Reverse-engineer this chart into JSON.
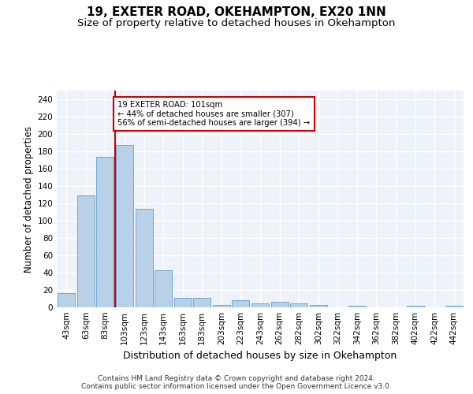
{
  "title1": "19, EXETER ROAD, OKEHAMPTON, EX20 1NN",
  "title2": "Size of property relative to detached houses in Okehampton",
  "xlabel": "Distribution of detached houses by size in Okehampton",
  "ylabel": "Number of detached properties",
  "footer1": "Contains HM Land Registry data © Crown copyright and database right 2024.",
  "footer2": "Contains public sector information licensed under the Open Government Licence v3.0.",
  "categories": [
    "43sqm",
    "63sqm",
    "83sqm",
    "103sqm",
    "123sqm",
    "143sqm",
    "163sqm",
    "183sqm",
    "203sqm",
    "223sqm",
    "243sqm",
    "262sqm",
    "282sqm",
    "302sqm",
    "322sqm",
    "342sqm",
    "362sqm",
    "382sqm",
    "402sqm",
    "422sqm",
    "442sqm"
  ],
  "values": [
    16,
    129,
    174,
    187,
    114,
    43,
    11,
    11,
    3,
    8,
    5,
    6,
    5,
    3,
    0,
    2,
    0,
    0,
    2,
    0,
    2
  ],
  "bar_color": "#b8d0e8",
  "bar_edge_color": "#6aaad4",
  "vline_color": "#cc0000",
  "annotation_text": "19 EXETER ROAD: 101sqm\n← 44% of detached houses are smaller (307)\n56% of semi-detached houses are larger (394) →",
  "annotation_box_color": "#ffffff",
  "annotation_box_edge": "#cc0000",
  "ylim": [
    0,
    250
  ],
  "yticks": [
    0,
    20,
    40,
    60,
    80,
    100,
    120,
    140,
    160,
    180,
    200,
    220,
    240
  ],
  "background_color": "#eef2f9",
  "grid_color": "#ffffff",
  "title1_fontsize": 11,
  "title2_fontsize": 9.5,
  "xlabel_fontsize": 9,
  "ylabel_fontsize": 8.5,
  "tick_fontsize": 7.5,
  "footer_fontsize": 6.5
}
